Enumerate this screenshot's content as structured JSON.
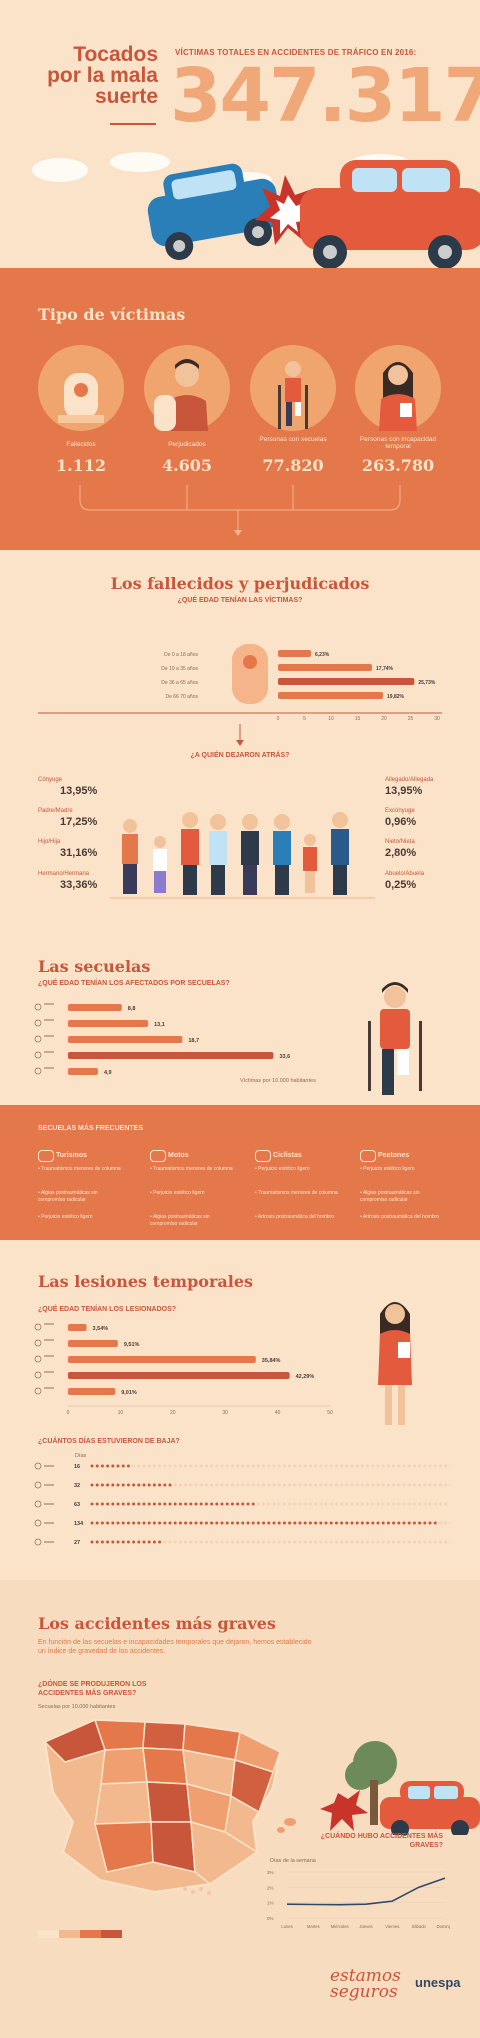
{
  "header": {
    "title": "Tocados por la mala suerte",
    "subtitle": "VÍCTIMAS TOTALES EN ACCIDENTES DE TRÁFICO EN 2016:",
    "total": "347.317"
  },
  "victim_types": {
    "title": "Tipo de víctimas",
    "items": [
      {
        "label": "Fallecidos",
        "value": "1.112"
      },
      {
        "label": "Perjudicados",
        "value": "4.605"
      },
      {
        "label": "Personas con secuelas",
        "value": "77.820"
      },
      {
        "label": "Personas con incapacidad temporal",
        "value": "263.780"
      }
    ]
  },
  "fallecidos": {
    "title": "Los fallecidos y perjudicados",
    "age_question": "¿QUÉ EDAD TENÍAN LAS VÍCTIMAS?",
    "left_question": "¿A QUIÉN DEJARON ATRÁS?",
    "relatives_left": [
      {
        "label": "Cónyuge",
        "value": "13,95%"
      },
      {
        "label": "Padre/Madre",
        "value": "17,25%"
      },
      {
        "label": "Hijo/Hija",
        "value": "31,16%"
      },
      {
        "label": "Hermano/Hermana",
        "value": "33,36%"
      }
    ],
    "relatives_right": [
      {
        "label": "Allegado/Allegada",
        "value": "13,95%"
      },
      {
        "label": "Excónyuge",
        "value": "0,96%"
      },
      {
        "label": "Nieto/Nieta",
        "value": "2,80%"
      },
      {
        "label": "Abuelo/Abuela",
        "value": "0,25%"
      }
    ]
  },
  "secuelas": {
    "title": "Las secuelas",
    "question": "¿QUÉ EDAD TENÍAN LOS AFECTADOS POR SECUELAS?",
    "axis_note": "Víctimas por 10.000 habitantes",
    "frequent_title": "SECUELAS MÁS FRECUENTES",
    "columns": [
      {
        "title": "Turismos",
        "items": [
          "Traumatismos menores de columna",
          "Algias postraumáticas sin compromiso radicular",
          "Perjuicio estético ligero"
        ]
      },
      {
        "title": "Motos",
        "items": [
          "Traumatismos menores de columna",
          "Perjuicio estético ligero",
          "Algias postraumáticas sin compromiso radicular"
        ]
      },
      {
        "title": "Ciclistas",
        "items": [
          "Perjuicio estético ligero",
          "Traumatismos menores de columna",
          "Artrosis postraumática del hombro"
        ]
      },
      {
        "title": "Peatones",
        "items": [
          "Perjuicio estético ligero",
          "Algias postraumáticas sin compromiso radicular",
          "Artrosis postraumática del hombro"
        ]
      }
    ]
  },
  "lesiones": {
    "title": "Las lesiones temporales",
    "question": "¿QUÉ EDAD TENÍAN LOS LESIONADOS?",
    "days_question": "¿CUÁNTOS DÍAS ESTUVIERON DE BAJA?",
    "days_header": "Días"
  },
  "graves": {
    "title": "Los accidentes más graves",
    "intro": "En función de las secuelas e incapacidades temporales que dejaron, hemos establecido un índice de gravedad de los accidentes.",
    "where_question": "¿DÓNDE SE PRODUJERON LOS ACCIDENTES MÁS GRAVES?",
    "where_sub": "Secuelas por 10.000 habitantes",
    "when_question": "¿CUÁNDO HUBO ACCIDENTES MÁS GRAVES?",
    "when_sub": "Días de la semana"
  },
  "footer": {
    "brand_script": "estamos seguros",
    "logo": "unespa"
  },
  "colors": {
    "bg": "#fbe3c9",
    "accent": "#e4784a",
    "dark_accent": "#c8563a",
    "bar": "#e4784a",
    "text": "#4a3a35"
  },
  "chart_data": [
    {
      "type": "bar",
      "orientation": "horizontal",
      "categories": [
        "De 0 a 18 años",
        "De 19 a 35 años",
        "De 36 a 65 años",
        "De 66 70 años"
      ],
      "values": [
        6.23,
        17.74,
        25.73,
        19.82
      ],
      "value_labels": [
        "6,23%",
        "17,74%",
        "25,73%",
        "19,82%"
      ],
      "xlim": [
        0,
        30
      ],
      "ticks": [
        "0",
        "5",
        "10",
        "15",
        "20",
        "25",
        "30"
      ]
    },
    {
      "type": "bar",
      "orientation": "horizontal",
      "categories": [
        "Grupo 1",
        "Grupo 2",
        "Grupo 3",
        "Grupo 4",
        "Grupo 5"
      ],
      "values": [
        8.8,
        13.1,
        18.7,
        33.6,
        4.9
      ],
      "value_labels": [
        "8,8",
        "13,1",
        "18,7",
        "33,6",
        "4,9"
      ],
      "xlim": [
        0,
        35
      ]
    },
    {
      "type": "bar",
      "orientation": "horizontal",
      "categories": [
        "Grupo 1",
        "Grupo 2",
        "Grupo 3",
        "Grupo 4",
        "Grupo 5"
      ],
      "values": [
        3.54,
        9.51,
        35.84,
        42.29,
        9.01
      ],
      "value_labels": [
        "3,54%",
        "9,51%",
        "35,84%",
        "42,29%",
        "9,01%"
      ],
      "xlim": [
        0,
        50
      ],
      "ticks": [
        "0",
        "10",
        "20",
        "30",
        "40",
        "50"
      ]
    },
    {
      "type": "bar",
      "orientation": "horizontal",
      "categories": [
        "Grupo 1",
        "Grupo 2",
        "Grupo 3",
        "Grupo 4",
        "Grupo 5"
      ],
      "values": [
        16,
        32,
        63,
        134,
        27
      ],
      "value_labels": [
        "16",
        "32",
        "63",
        "134",
        "27"
      ],
      "xmax": 140
    },
    {
      "type": "line",
      "x": [
        "Lunes",
        "Martes",
        "Miércoles",
        "Jueves",
        "Viernes",
        "Sábado",
        "Domingo"
      ],
      "values": [
        0.9,
        0.88,
        0.87,
        0.9,
        1.1,
        2.0,
        2.6
      ],
      "ticks": [
        "0%",
        "1%",
        "2%",
        "3%"
      ],
      "ylim": [
        0,
        3
      ]
    }
  ]
}
